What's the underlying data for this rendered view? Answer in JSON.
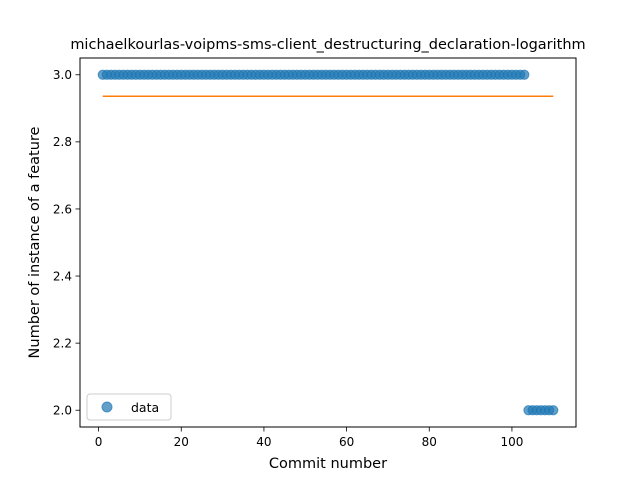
{
  "chart_data": {
    "type": "scatter",
    "title": "michaelkourlas-voipms-sms-client_destructuring_declaration-logarithm",
    "xlabel": "Commit number",
    "ylabel": "Number of instance of a feature",
    "xlim": [
      -4.5,
      115.5
    ],
    "ylim": [
      1.95,
      3.05
    ],
    "xticks": [
      0,
      20,
      40,
      60,
      80,
      100
    ],
    "yticks": [
      2.0,
      2.2,
      2.4,
      2.6,
      2.8,
      3.0
    ],
    "xtick_labels": [
      "0",
      "20",
      "40",
      "60",
      "80",
      "100"
    ],
    "ytick_labels": [
      "2.0",
      "2.2",
      "2.4",
      "2.6",
      "2.8",
      "3.0"
    ],
    "legend": {
      "position": "lower-left",
      "entries": [
        "data"
      ]
    },
    "grid": false,
    "series": [
      {
        "name": "data",
        "kind": "scatter",
        "color": "#1f77b4",
        "x": [
          1,
          2,
          3,
          4,
          5,
          6,
          7,
          8,
          9,
          10,
          11,
          12,
          13,
          14,
          15,
          16,
          17,
          18,
          19,
          20,
          21,
          22,
          23,
          24,
          25,
          26,
          27,
          28,
          29,
          30,
          31,
          32,
          33,
          34,
          35,
          36,
          37,
          38,
          39,
          40,
          41,
          42,
          43,
          44,
          45,
          46,
          47,
          48,
          49,
          50,
          51,
          52,
          53,
          54,
          55,
          56,
          57,
          58,
          59,
          60,
          61,
          62,
          63,
          64,
          65,
          66,
          67,
          68,
          69,
          70,
          71,
          72,
          73,
          74,
          75,
          76,
          77,
          78,
          79,
          80,
          81,
          82,
          83,
          84,
          85,
          86,
          87,
          88,
          89,
          90,
          91,
          92,
          93,
          94,
          95,
          96,
          97,
          98,
          99,
          100,
          101,
          102,
          103,
          104,
          105,
          106,
          107,
          108,
          109,
          110
        ],
        "y": [
          3,
          3,
          3,
          3,
          3,
          3,
          3,
          3,
          3,
          3,
          3,
          3,
          3,
          3,
          3,
          3,
          3,
          3,
          3,
          3,
          3,
          3,
          3,
          3,
          3,
          3,
          3,
          3,
          3,
          3,
          3,
          3,
          3,
          3,
          3,
          3,
          3,
          3,
          3,
          3,
          3,
          3,
          3,
          3,
          3,
          3,
          3,
          3,
          3,
          3,
          3,
          3,
          3,
          3,
          3,
          3,
          3,
          3,
          3,
          3,
          3,
          3,
          3,
          3,
          3,
          3,
          3,
          3,
          3,
          3,
          3,
          3,
          3,
          3,
          3,
          3,
          3,
          3,
          3,
          3,
          3,
          3,
          3,
          3,
          3,
          3,
          3,
          3,
          3,
          3,
          3,
          3,
          3,
          3,
          3,
          3,
          3,
          3,
          3,
          3,
          3,
          3,
          3,
          2,
          2,
          2,
          2,
          2,
          2,
          2
        ]
      },
      {
        "kind": "line",
        "color": "#ff7f0e",
        "x": [
          1,
          110
        ],
        "y": [
          2.936,
          2.936
        ]
      }
    ]
  }
}
